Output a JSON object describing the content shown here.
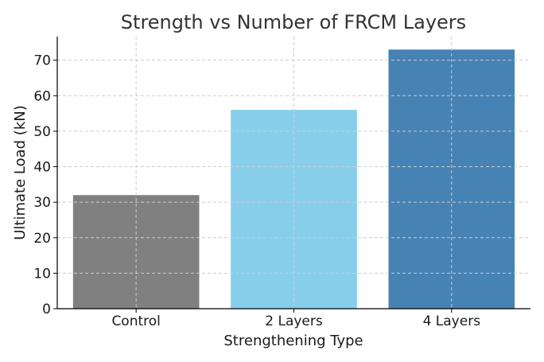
{
  "chart_data": {
    "type": "bar",
    "title": "Strength vs Number of FRCM Layers",
    "xlabel": "Strengthening Type",
    "ylabel": "Ultimate Load (kN)",
    "categories": [
      "Control",
      "2 Layers",
      "4 Layers"
    ],
    "values": [
      32,
      56,
      73
    ],
    "colors": [
      "#808080",
      "#87ceeb",
      "#4682b4"
    ],
    "ylim": [
      0,
      76.65
    ],
    "yticks": [
      0,
      10,
      20,
      30,
      40,
      50,
      60,
      70
    ],
    "grid": true
  }
}
